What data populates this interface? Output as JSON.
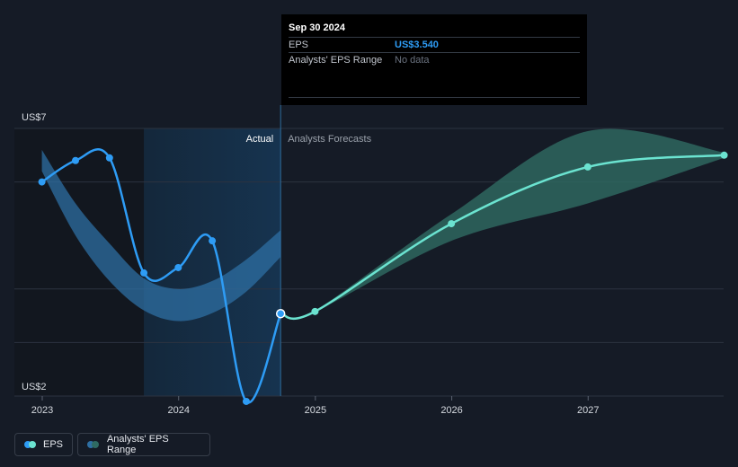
{
  "chart_data": {
    "type": "line",
    "title": "",
    "xlabel": "",
    "ylabel": "",
    "x_ticks": [
      "2023",
      "2024",
      "2025",
      "2026",
      "2027"
    ],
    "y_ticks": [
      "US$7",
      "US$2"
    ],
    "ylim": [
      2,
      7
    ],
    "divider_labels": {
      "actual": "Actual",
      "forecast": "Analysts Forecasts"
    },
    "series": [
      {
        "name": "EPS",
        "kind": "actual",
        "points": [
          {
            "date": "2022-12-31",
            "value": 6.0
          },
          {
            "date": "2023-03-31",
            "value": 6.4
          },
          {
            "date": "2023-06-30",
            "value": 6.45
          },
          {
            "date": "2023-09-30",
            "value": 4.3
          },
          {
            "date": "2023-12-31",
            "value": 4.4
          },
          {
            "date": "2024-03-31",
            "value": 4.9
          },
          {
            "date": "2024-06-30",
            "value": 1.9
          },
          {
            "date": "2024-09-30",
            "value": 3.54
          }
        ]
      },
      {
        "name": "EPS",
        "kind": "forecast",
        "points": [
          {
            "date": "2024-09-30",
            "value": 3.54
          },
          {
            "date": "2024-12-31",
            "value": 3.58
          },
          {
            "date": "2025-12-31",
            "value": 5.22
          },
          {
            "date": "2026-12-31",
            "value": 6.28
          },
          {
            "date": "2027-12-31",
            "value": 6.5
          }
        ]
      }
    ],
    "ranges": [
      {
        "name": "Analysts' EPS Range",
        "kind": "actual",
        "points": [
          {
            "date": "2022-12-31",
            "low": 6.2,
            "high": 6.6
          },
          {
            "date": "2023-03-31",
            "low": 5.0,
            "high": 5.6
          },
          {
            "date": "2023-06-30",
            "low": 4.15,
            "high": 4.85
          },
          {
            "date": "2023-09-30",
            "low": 3.6,
            "high": 4.2
          },
          {
            "date": "2023-12-31",
            "low": 3.4,
            "high": 4.0
          },
          {
            "date": "2024-03-31",
            "low": 3.55,
            "high": 4.15
          },
          {
            "date": "2024-06-30",
            "low": 3.95,
            "high": 4.55
          },
          {
            "date": "2024-09-30",
            "low": 4.6,
            "high": 5.1
          }
        ]
      },
      {
        "name": "Analysts' EPS Range",
        "kind": "forecast",
        "points": [
          {
            "date": "2024-09-30",
            "low": 3.54,
            "high": 3.54
          },
          {
            "date": "2024-12-31",
            "low": 3.58,
            "high": 3.6
          },
          {
            "date": "2025-12-31",
            "low": 4.9,
            "high": 5.4
          },
          {
            "date": "2026-12-31",
            "low": 5.6,
            "high": 6.95
          },
          {
            "date": "2027-12-31",
            "low": 6.45,
            "high": 6.55
          }
        ]
      }
    ],
    "highlight": {
      "date": "2024-09-30"
    },
    "colors": {
      "actual_line": "#2e9cf5",
      "forecast_line": "#6be3d0",
      "actual_band": "#2e6fa3",
      "forecast_band": "#2f6b63",
      "highlight_band": "#163552",
      "grid": "#2c3340",
      "axis_text": "#d6dae0"
    },
    "legend": [
      {
        "label": "EPS",
        "colors": [
          "#2e9cf5",
          "#6be3d0"
        ]
      },
      {
        "label": "Analysts' EPS Range",
        "colors": [
          "#2e6fa3",
          "#2f6b63"
        ]
      }
    ]
  },
  "tooltip": {
    "date": "Sep 30 2024",
    "rows": [
      {
        "label": "EPS",
        "value": "US$3.540"
      },
      {
        "label": "Analysts' EPS Range",
        "value": "No data"
      }
    ]
  }
}
